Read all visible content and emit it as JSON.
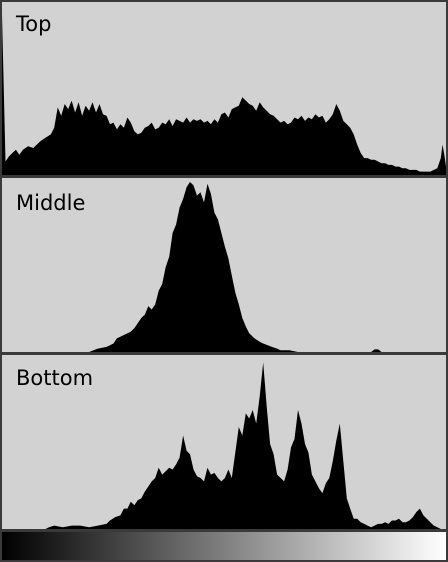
{
  "colors": {
    "background": "#d2d2d2",
    "histogram": "#000000",
    "border": "#3a3a3a"
  },
  "chart_data": [
    {
      "type": "area",
      "title": "Top",
      "xlim": [
        0,
        255
      ],
      "ylim": [
        0,
        1
      ],
      "x": [
        0,
        2,
        4,
        6,
        8,
        10,
        12,
        15,
        18,
        20,
        22,
        25,
        28,
        30,
        32,
        34,
        36,
        38,
        40,
        42,
        44,
        46,
        48,
        50,
        52,
        54,
        56,
        58,
        60,
        62,
        64,
        66,
        68,
        70,
        72,
        74,
        76,
        78,
        80,
        82,
        84,
        86,
        88,
        90,
        92,
        94,
        96,
        98,
        100,
        102,
        104,
        106,
        108,
        110,
        112,
        114,
        116,
        118,
        120,
        122,
        124,
        126,
        128,
        130,
        132,
        134,
        136,
        138,
        140,
        142,
        144,
        146,
        148,
        150,
        152,
        154,
        156,
        158,
        160,
        162,
        164,
        166,
        168,
        170,
        172,
        174,
        176,
        178,
        180,
        182,
        184,
        186,
        188,
        190,
        192,
        194,
        196,
        198,
        200,
        202,
        204,
        206,
        208,
        210,
        212,
        214,
        216,
        218,
        220,
        222,
        224,
        226,
        228,
        230,
        232,
        234,
        236,
        238,
        240,
        242,
        244,
        246,
        248,
        250,
        252,
        253,
        254,
        255
      ],
      "values": [
        0.95,
        0.08,
        0.11,
        0.13,
        0.15,
        0.12,
        0.15,
        0.17,
        0.16,
        0.18,
        0.2,
        0.22,
        0.24,
        0.28,
        0.4,
        0.35,
        0.42,
        0.39,
        0.44,
        0.37,
        0.43,
        0.35,
        0.41,
        0.38,
        0.43,
        0.37,
        0.42,
        0.36,
        0.35,
        0.3,
        0.31,
        0.27,
        0.3,
        0.28,
        0.34,
        0.31,
        0.26,
        0.24,
        0.25,
        0.28,
        0.29,
        0.31,
        0.27,
        0.28,
        0.31,
        0.3,
        0.33,
        0.29,
        0.33,
        0.32,
        0.31,
        0.34,
        0.31,
        0.33,
        0.32,
        0.33,
        0.31,
        0.32,
        0.3,
        0.33,
        0.31,
        0.36,
        0.37,
        0.34,
        0.39,
        0.4,
        0.41,
        0.46,
        0.44,
        0.42,
        0.41,
        0.38,
        0.43,
        0.4,
        0.38,
        0.36,
        0.35,
        0.33,
        0.31,
        0.32,
        0.3,
        0.31,
        0.34,
        0.33,
        0.35,
        0.32,
        0.34,
        0.33,
        0.36,
        0.34,
        0.35,
        0.31,
        0.33,
        0.36,
        0.42,
        0.38,
        0.32,
        0.3,
        0.28,
        0.24,
        0.18,
        0.13,
        0.1,
        0.1,
        0.09,
        0.09,
        0.08,
        0.07,
        0.07,
        0.06,
        0.06,
        0.05,
        0.05,
        0.04,
        0.04,
        0.03,
        0.03,
        0.03,
        0.02,
        0.02,
        0.02,
        0.02,
        0.03,
        0.04,
        0.1,
        0.18,
        0.12,
        0.05
      ]
    },
    {
      "type": "area",
      "title": "Middle",
      "xlim": [
        0,
        255
      ],
      "ylim": [
        0,
        1
      ],
      "x": [
        0,
        50,
        55,
        60,
        62,
        64,
        66,
        70,
        74,
        76,
        78,
        80,
        82,
        84,
        86,
        88,
        90,
        92,
        94,
        96,
        98,
        100,
        102,
        104,
        106,
        108,
        110,
        112,
        114,
        116,
        118,
        120,
        122,
        124,
        126,
        128,
        130,
        132,
        134,
        136,
        138,
        140,
        142,
        145,
        148,
        150,
        155,
        158,
        160,
        165,
        170,
        200,
        212,
        214,
        216,
        218,
        255
      ],
      "values": [
        0,
        0,
        0.02,
        0.03,
        0.04,
        0.05,
        0.08,
        0.1,
        0.12,
        0.14,
        0.17,
        0.2,
        0.22,
        0.27,
        0.25,
        0.28,
        0.36,
        0.4,
        0.5,
        0.56,
        0.7,
        0.75,
        0.85,
        0.9,
        0.97,
        1.0,
        0.98,
        0.92,
        0.94,
        0.88,
        0.99,
        0.93,
        0.82,
        0.78,
        0.7,
        0.62,
        0.55,
        0.45,
        0.35,
        0.28,
        0.2,
        0.15,
        0.11,
        0.08,
        0.06,
        0.05,
        0.03,
        0.02,
        0.01,
        0.01,
        0,
        0,
        0,
        0.015,
        0.015,
        0,
        0
      ]
    },
    {
      "type": "area",
      "title": "Bottom",
      "xlim": [
        0,
        255
      ],
      "ylim": [
        0,
        1
      ],
      "x": [
        0,
        25,
        27,
        30,
        35,
        40,
        45,
        50,
        55,
        60,
        62,
        65,
        68,
        70,
        72,
        74,
        76,
        78,
        80,
        82,
        84,
        86,
        88,
        90,
        92,
        94,
        96,
        98,
        100,
        102,
        104,
        106,
        108,
        110,
        112,
        114,
        116,
        118,
        120,
        122,
        124,
        126,
        128,
        130,
        132,
        134,
        136,
        138,
        140,
        142,
        144,
        146,
        148,
        150,
        152,
        154,
        156,
        158,
        160,
        162,
        164,
        166,
        168,
        170,
        172,
        174,
        176,
        178,
        180,
        182,
        184,
        186,
        188,
        190,
        192,
        194,
        196,
        198,
        200,
        202,
        204,
        206,
        208,
        210,
        212,
        214,
        216,
        218,
        220,
        222,
        224,
        226,
        228,
        230,
        232,
        234,
        236,
        238,
        240,
        242,
        244,
        246,
        248,
        250,
        252,
        255
      ],
      "values": [
        0,
        0,
        0.01,
        0.02,
        0.01,
        0.02,
        0.02,
        0.01,
        0.02,
        0.03,
        0.05,
        0.07,
        0.08,
        0.12,
        0.12,
        0.16,
        0.14,
        0.17,
        0.18,
        0.22,
        0.25,
        0.28,
        0.3,
        0.36,
        0.32,
        0.34,
        0.36,
        0.35,
        0.38,
        0.42,
        0.55,
        0.46,
        0.44,
        0.35,
        0.31,
        0.3,
        0.28,
        0.36,
        0.32,
        0.33,
        0.3,
        0.28,
        0.3,
        0.35,
        0.3,
        0.45,
        0.6,
        0.55,
        0.68,
        0.65,
        0.7,
        0.62,
        0.78,
        0.98,
        0.72,
        0.5,
        0.44,
        0.32,
        0.3,
        0.28,
        0.35,
        0.48,
        0.53,
        0.7,
        0.62,
        0.5,
        0.45,
        0.32,
        0.28,
        0.24,
        0.21,
        0.27,
        0.3,
        0.4,
        0.52,
        0.62,
        0.4,
        0.18,
        0.12,
        0.06,
        0.06,
        0.04,
        0.03,
        0.02,
        0.01,
        0.02,
        0.03,
        0.03,
        0.04,
        0.03,
        0.05,
        0.05,
        0.06,
        0.04,
        0.04,
        0.05,
        0.07,
        0.1,
        0.12,
        0.08,
        0.06,
        0.04,
        0.02,
        0.01,
        0,
        0
      ]
    }
  ]
}
